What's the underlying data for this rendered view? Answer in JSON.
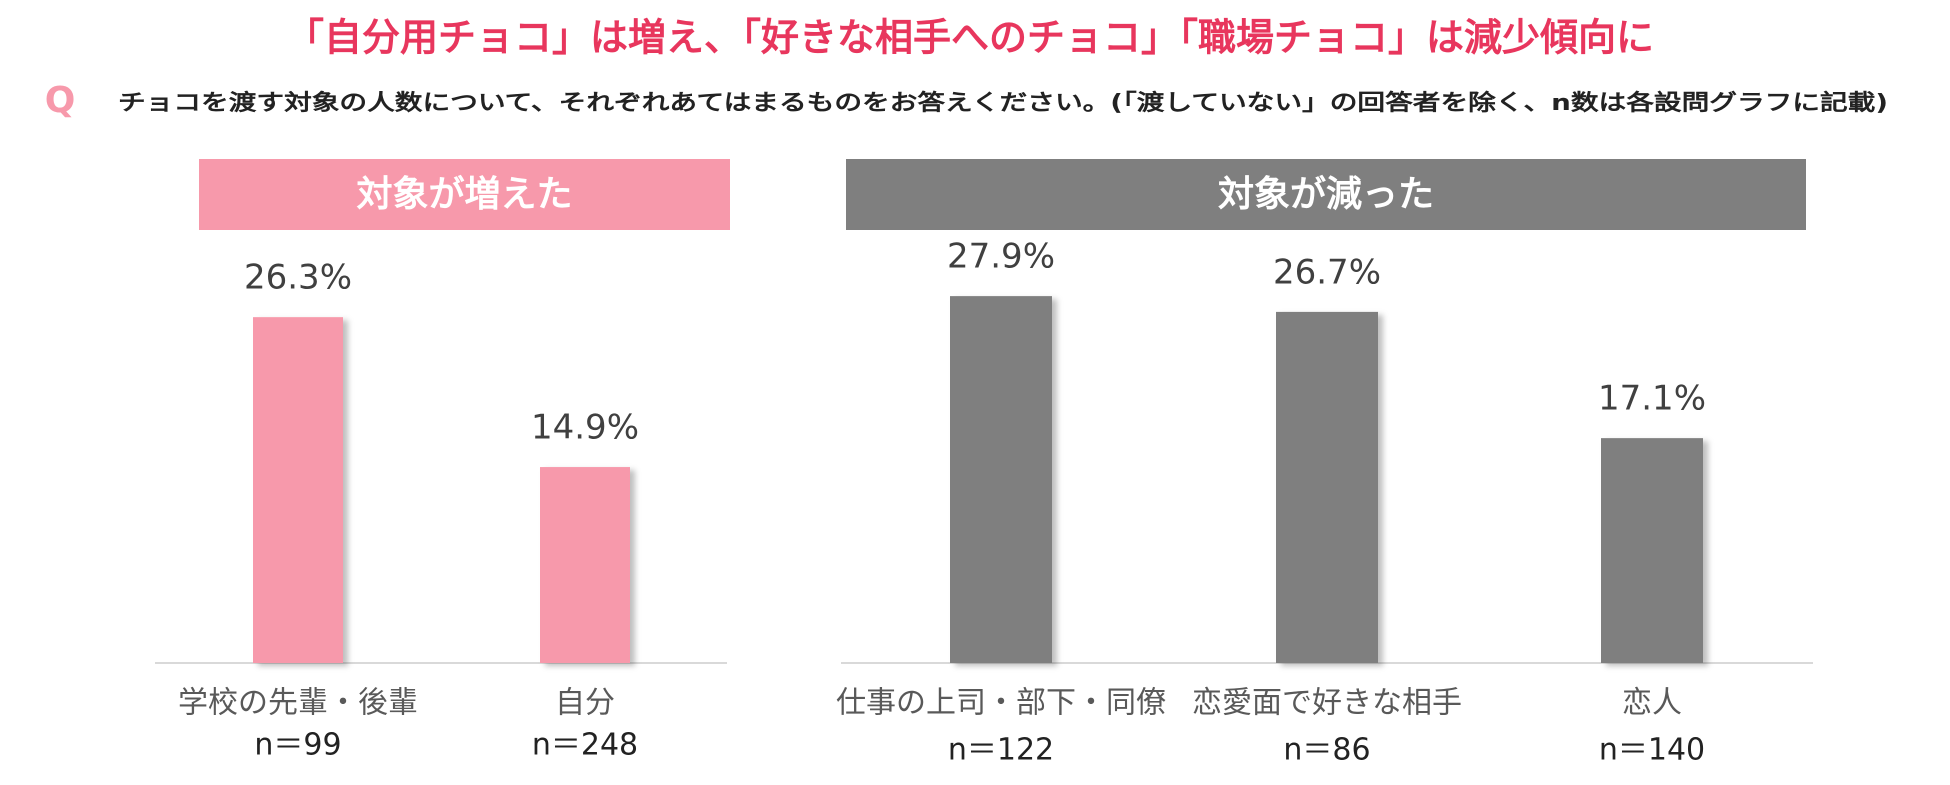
{
  "title": "「自分用チョコ」は増え、「好きな相手へのチョコ」「職場チョコ」は減少傾向に",
  "question_mark": "Q",
  "question": "チョコを渡す対象の人数について、それぞれあてはまるものをお答えください。(「渡していない」の回答者を除く、n数は各設問グラフに記載)",
  "chart_data": [
    {
      "type": "bar",
      "title": "対象が増えた",
      "categories": [
        "学校の先輩・後輩",
        "自分"
      ],
      "sample_sizes": [
        "n＝99",
        "n＝248"
      ],
      "values": [
        26.3,
        14.9
      ],
      "value_labels": [
        "26.3%",
        "14.9%"
      ],
      "color": "#f799ab"
    },
    {
      "type": "bar",
      "title": "対象が減った",
      "categories": [
        "仕事の上司・部下・同僚",
        "恋愛面で好きな相手",
        "恋人"
      ],
      "sample_sizes": [
        "n＝122",
        "n＝86",
        "n＝140"
      ],
      "values": [
        27.9,
        26.7,
        17.1
      ],
      "value_labels": [
        "27.9%",
        "26.7%",
        "17.1%"
      ],
      "color": "#7f7f7f"
    }
  ]
}
